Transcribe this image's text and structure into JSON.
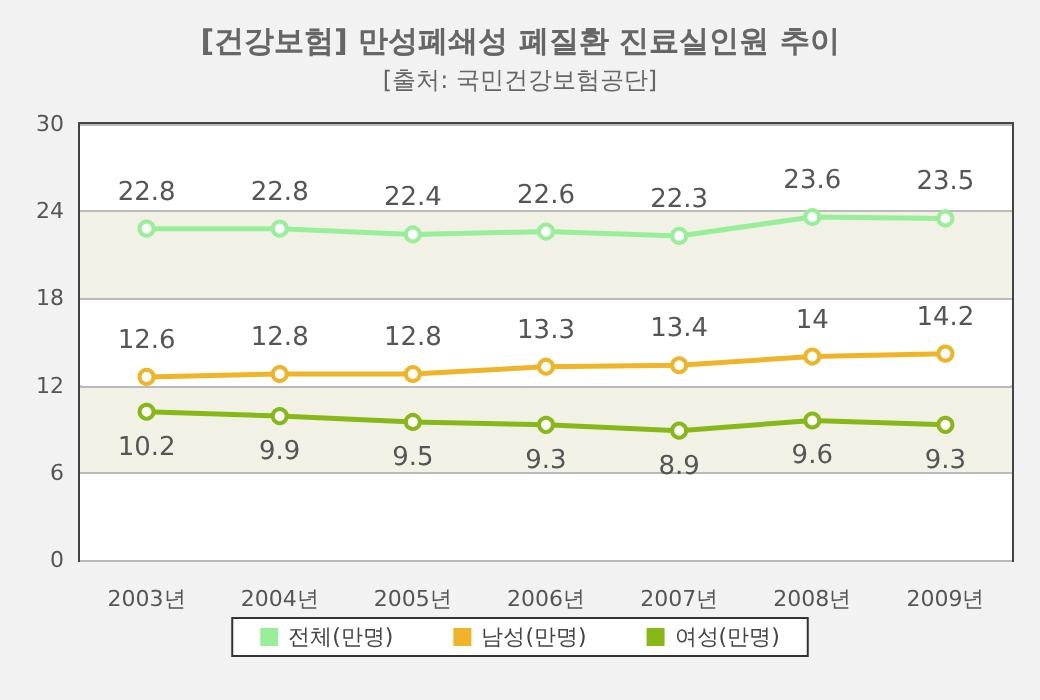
{
  "chart_data": {
    "type": "line",
    "title": "[건강보험] 만성폐쇄성 폐질환 진료실인원 추이",
    "subtitle": "[출처: 국민건강보험공단]",
    "categories": [
      "2003년",
      "2004년",
      "2005년",
      "2006년",
      "2007년",
      "2008년",
      "2009년"
    ],
    "series": [
      {
        "name": "전체(만명)",
        "color": "#99ee99",
        "values": [
          22.8,
          22.8,
          22.4,
          22.6,
          22.3,
          23.6,
          23.5
        ]
      },
      {
        "name": "남성(만명)",
        "color": "#f0b428",
        "values": [
          12.6,
          12.8,
          12.8,
          13.3,
          13.4,
          14,
          14.2
        ]
      },
      {
        "name": "여성(만명)",
        "color": "#88b818",
        "values": [
          10.2,
          9.9,
          9.5,
          9.3,
          8.9,
          9.6,
          9.3
        ]
      }
    ],
    "ylim": [
      0,
      30
    ],
    "yticks": [
      0,
      6,
      12,
      18,
      24,
      30
    ],
    "grid": "y",
    "legend": "bottom",
    "marker": "circle",
    "line_style": "solid",
    "data_labels": true
  }
}
